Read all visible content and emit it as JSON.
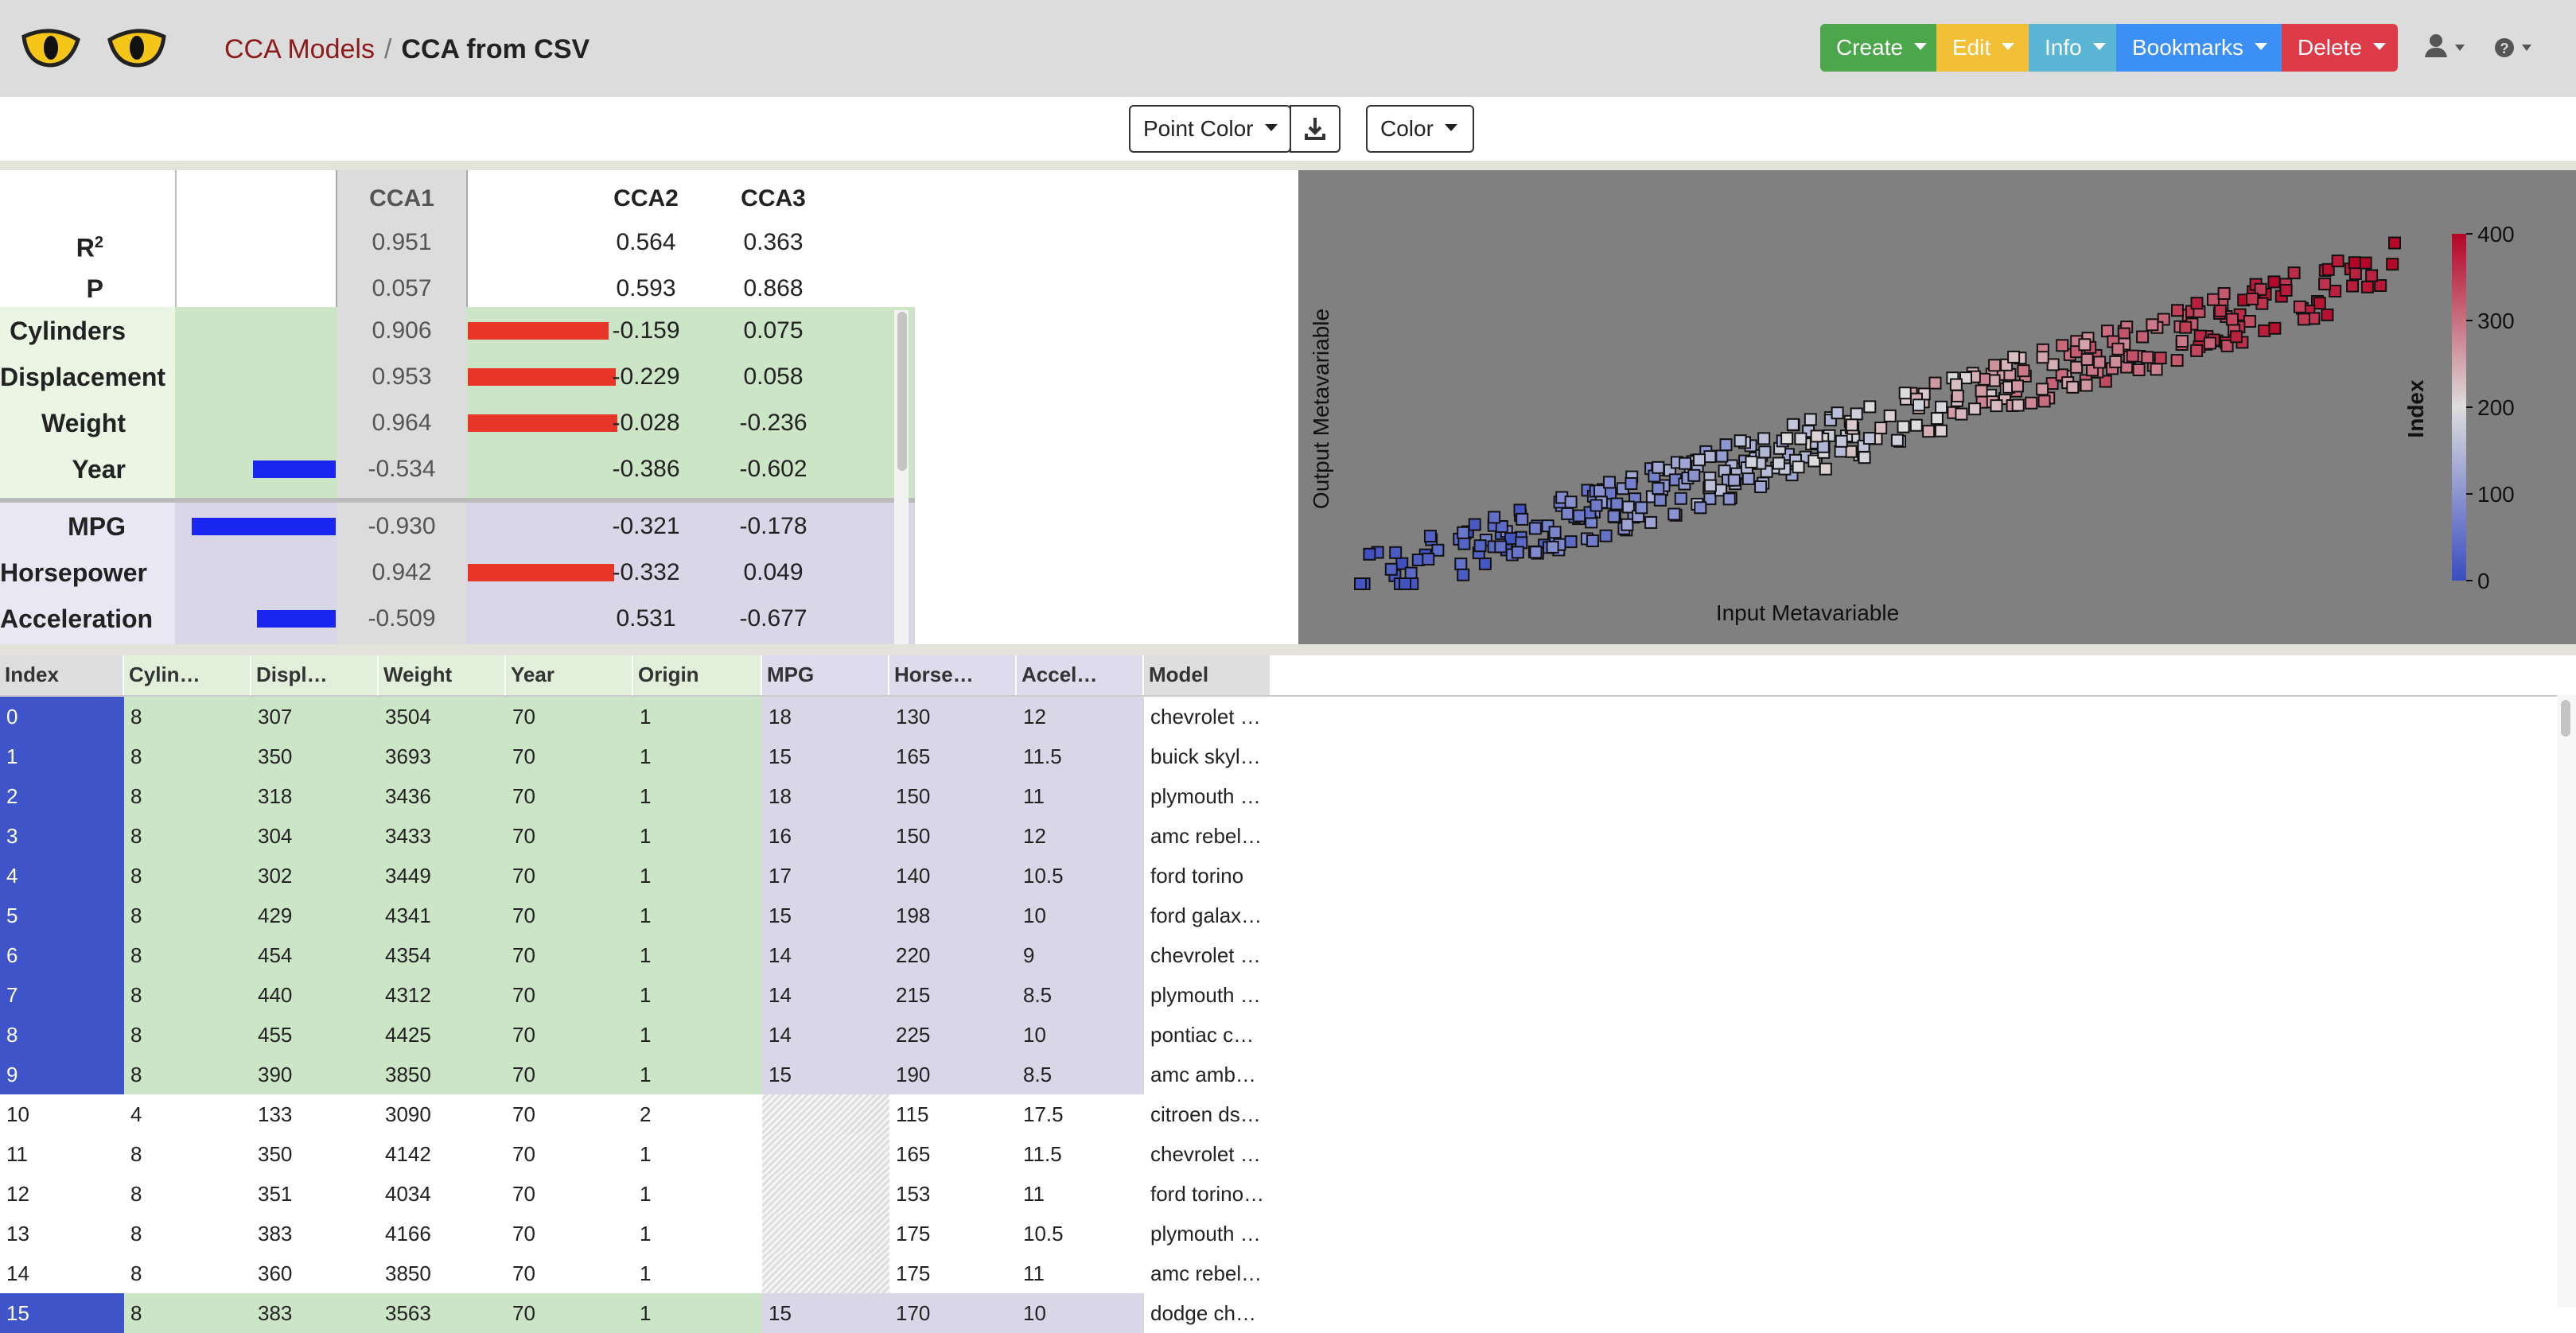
{
  "breadcrumb": {
    "parent": "CCA Models",
    "separator": "/",
    "current": "CCA from CSV"
  },
  "nav_buttons": [
    {
      "label": "Create",
      "color": "#4ca64c"
    },
    {
      "label": "Edit",
      "color": "#f2c037"
    },
    {
      "label": "Info",
      "color": "#5bb6d6"
    },
    {
      "label": "Bookmarks",
      "color": "#3b8ff5"
    },
    {
      "label": "Delete",
      "color": "#dc3b47"
    }
  ],
  "toolbar": {
    "point_color": "Point Color",
    "color": "Color"
  },
  "cca": {
    "headers": [
      "CCA1",
      "CCA2",
      "CCA3"
    ],
    "stats": [
      {
        "label": "R",
        "sup": "2",
        "values": [
          "0.951",
          "0.564",
          "0.363"
        ]
      },
      {
        "label": "P",
        "sup": "",
        "values": [
          "0.057",
          "0.593",
          "0.868"
        ]
      }
    ],
    "inputs": [
      {
        "name": "Cylinders",
        "values": [
          "0.906",
          "-0.159",
          "0.075"
        ],
        "cca1": 0.906
      },
      {
        "name": "Displacement",
        "values": [
          "0.953",
          "-0.229",
          "0.058"
        ],
        "cca1": 0.953
      },
      {
        "name": "Weight",
        "values": [
          "0.964",
          "-0.028",
          "-0.236"
        ],
        "cca1": 0.964
      },
      {
        "name": "Year",
        "values": [
          "-0.534",
          "-0.386",
          "-0.602"
        ],
        "cca1": -0.534
      }
    ],
    "outputs": [
      {
        "name": "MPG",
        "values": [
          "-0.930",
          "-0.321",
          "-0.178"
        ],
        "cca1": -0.93
      },
      {
        "name": "Horsepower",
        "values": [
          "0.942",
          "-0.332",
          "0.049"
        ],
        "cca1": 0.942
      },
      {
        "name": "Acceleration",
        "values": [
          "-0.509",
          "0.531",
          "-0.677"
        ],
        "cca1": -0.509
      }
    ],
    "colors": {
      "positive": "#e8362a",
      "negative": "#1a26f0",
      "input_bg": "#cde5c7",
      "output_bg": "#d9d6e8"
    }
  },
  "scatter": {
    "xlabel": "Input Metavariable",
    "ylabel": "Output Metavariable",
    "colorbar_label": "Index",
    "colorbar_ticks": [
      "0",
      "100",
      "200",
      "300",
      "400"
    ],
    "colorbar_range": [
      0,
      400
    ]
  },
  "table": {
    "columns": [
      {
        "label": "Index",
        "role": "index"
      },
      {
        "label": "Cylin…",
        "role": "input"
      },
      {
        "label": "Displ…",
        "role": "input"
      },
      {
        "label": "Weight",
        "role": "input"
      },
      {
        "label": "Year",
        "role": "input"
      },
      {
        "label": "Origin",
        "role": "input"
      },
      {
        "label": "MPG",
        "role": "output"
      },
      {
        "label": "Horse…",
        "role": "output"
      },
      {
        "label": "Accel…",
        "role": "output"
      },
      {
        "label": "Model",
        "role": "other"
      }
    ],
    "rows": [
      {
        "selected": true,
        "cells": [
          "0",
          "8",
          "307",
          "3504",
          "70",
          "1",
          "18",
          "130",
          "12",
          "chevrolet …"
        ]
      },
      {
        "selected": true,
        "cells": [
          "1",
          "8",
          "350",
          "3693",
          "70",
          "1",
          "15",
          "165",
          "11.5",
          "buick skyl…"
        ]
      },
      {
        "selected": true,
        "cells": [
          "2",
          "8",
          "318",
          "3436",
          "70",
          "1",
          "18",
          "150",
          "11",
          "plymouth …"
        ]
      },
      {
        "selected": true,
        "cells": [
          "3",
          "8",
          "304",
          "3433",
          "70",
          "1",
          "16",
          "150",
          "12",
          "amc rebel…"
        ]
      },
      {
        "selected": true,
        "cells": [
          "4",
          "8",
          "302",
          "3449",
          "70",
          "1",
          "17",
          "140",
          "10.5",
          "ford torino"
        ]
      },
      {
        "selected": true,
        "cells": [
          "5",
          "8",
          "429",
          "4341",
          "70",
          "1",
          "15",
          "198",
          "10",
          "ford galax…"
        ]
      },
      {
        "selected": true,
        "cells": [
          "6",
          "8",
          "454",
          "4354",
          "70",
          "1",
          "14",
          "220",
          "9",
          "chevrolet …"
        ]
      },
      {
        "selected": true,
        "cells": [
          "7",
          "8",
          "440",
          "4312",
          "70",
          "1",
          "14",
          "215",
          "8.5",
          "plymouth …"
        ]
      },
      {
        "selected": true,
        "cells": [
          "8",
          "8",
          "455",
          "4425",
          "70",
          "1",
          "14",
          "225",
          "10",
          "pontiac c…"
        ]
      },
      {
        "selected": true,
        "cells": [
          "9",
          "8",
          "390",
          "3850",
          "70",
          "1",
          "15",
          "190",
          "8.5",
          "amc amb…"
        ]
      },
      {
        "selected": false,
        "cells": [
          "10",
          "4",
          "133",
          "3090",
          "70",
          "2",
          "",
          "115",
          "17.5",
          "citroen ds…"
        ]
      },
      {
        "selected": false,
        "cells": [
          "11",
          "8",
          "350",
          "4142",
          "70",
          "1",
          "",
          "165",
          "11.5",
          "chevrolet …"
        ]
      },
      {
        "selected": false,
        "cells": [
          "12",
          "8",
          "351",
          "4034",
          "70",
          "1",
          "",
          "153",
          "11",
          "ford torino…"
        ]
      },
      {
        "selected": false,
        "cells": [
          "13",
          "8",
          "383",
          "4166",
          "70",
          "1",
          "",
          "175",
          "10.5",
          "plymouth …"
        ]
      },
      {
        "selected": false,
        "cells": [
          "14",
          "8",
          "360",
          "3850",
          "70",
          "1",
          "",
          "175",
          "11",
          "amc rebel…"
        ]
      },
      {
        "selected": true,
        "cells": [
          "15",
          "8",
          "383",
          "3563",
          "70",
          "1",
          "15",
          "170",
          "10",
          "dodge ch…"
        ]
      }
    ],
    "colors": {
      "index_selected": "#3f54c8",
      "input_selected": "#cde5c7",
      "output_selected": "#d9d6e8",
      "header_input": "#e2efdb",
      "header_output": "#dedcec",
      "header_index": "#dedede"
    }
  }
}
